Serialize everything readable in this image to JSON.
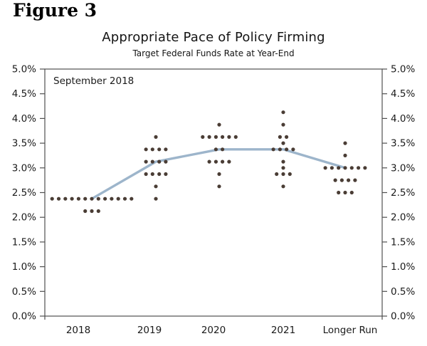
{
  "figure_label": "Figure 3",
  "chart_data": {
    "type": "scatter",
    "title": "Appropriate Pace of Policy Firming",
    "subtitle": "Target Federal Funds Rate at Year-End",
    "annotation": "September 2018",
    "categories": [
      "2018",
      "2019",
      "2020",
      "2021",
      "Longer Run"
    ],
    "y_axis": {
      "min": 0,
      "max": 5,
      "tick_step": 0.5,
      "ticks": [
        5.0,
        4.5,
        4.0,
        3.5,
        3.0,
        2.5,
        2.0,
        1.5,
        1.0,
        0.5,
        0.0
      ],
      "tick_labels": [
        "5.0%",
        "4.5%",
        "4.0%",
        "3.5%",
        "3.0%",
        "2.5%",
        "2.0%",
        "1.5%",
        "1.0%",
        "0.5%",
        "0.0%"
      ],
      "sides": [
        "left",
        "right"
      ]
    },
    "grid": "off",
    "legend": "none",
    "series": [
      {
        "name": "2018",
        "points": [
          {
            "rate": 2.375,
            "count": 13
          },
          {
            "rate": 2.125,
            "count": 3
          }
        ]
      },
      {
        "name": "2019",
        "points": [
          {
            "rate": 3.625,
            "count": 1
          },
          {
            "rate": 3.375,
            "count": 4
          },
          {
            "rate": 3.125,
            "count": 4
          },
          {
            "rate": 2.875,
            "count": 4
          },
          {
            "rate": 2.625,
            "count": 1
          },
          {
            "rate": 2.375,
            "count": 1
          }
        ]
      },
      {
        "name": "2020",
        "points": [
          {
            "rate": 3.875,
            "count": 1
          },
          {
            "rate": 3.625,
            "count": 6
          },
          {
            "rate": 3.375,
            "count": 2
          },
          {
            "rate": 3.125,
            "count": 4
          },
          {
            "rate": 2.875,
            "count": 1
          },
          {
            "rate": 2.625,
            "count": 1
          }
        ]
      },
      {
        "name": "2021",
        "points": [
          {
            "rate": 4.125,
            "count": 1
          },
          {
            "rate": 3.875,
            "count": 1
          },
          {
            "rate": 3.625,
            "count": 2
          },
          {
            "rate": 3.5,
            "count": 1
          },
          {
            "rate": 3.375,
            "count": 4
          },
          {
            "rate": 3.125,
            "count": 1
          },
          {
            "rate": 3.0,
            "count": 1
          },
          {
            "rate": 2.875,
            "count": 3
          },
          {
            "rate": 2.625,
            "count": 1
          }
        ]
      },
      {
        "name": "Longer Run",
        "points": [
          {
            "rate": 3.5,
            "count": 1
          },
          {
            "rate": 3.25,
            "count": 1
          },
          {
            "rate": 3.0,
            "count": 7
          },
          {
            "rate": 2.75,
            "count": 4
          },
          {
            "rate": 2.5,
            "count": 3
          }
        ]
      }
    ],
    "median_line": {
      "name": "Median path",
      "values": [
        2.375,
        3.125,
        3.375,
        3.375,
        3.0
      ]
    },
    "colors": {
      "dot": "#4a3d35",
      "median_line": "#92adc5",
      "axis": "#4f4f4f",
      "text": "#1a1a1a",
      "background": "#ffffff"
    }
  }
}
